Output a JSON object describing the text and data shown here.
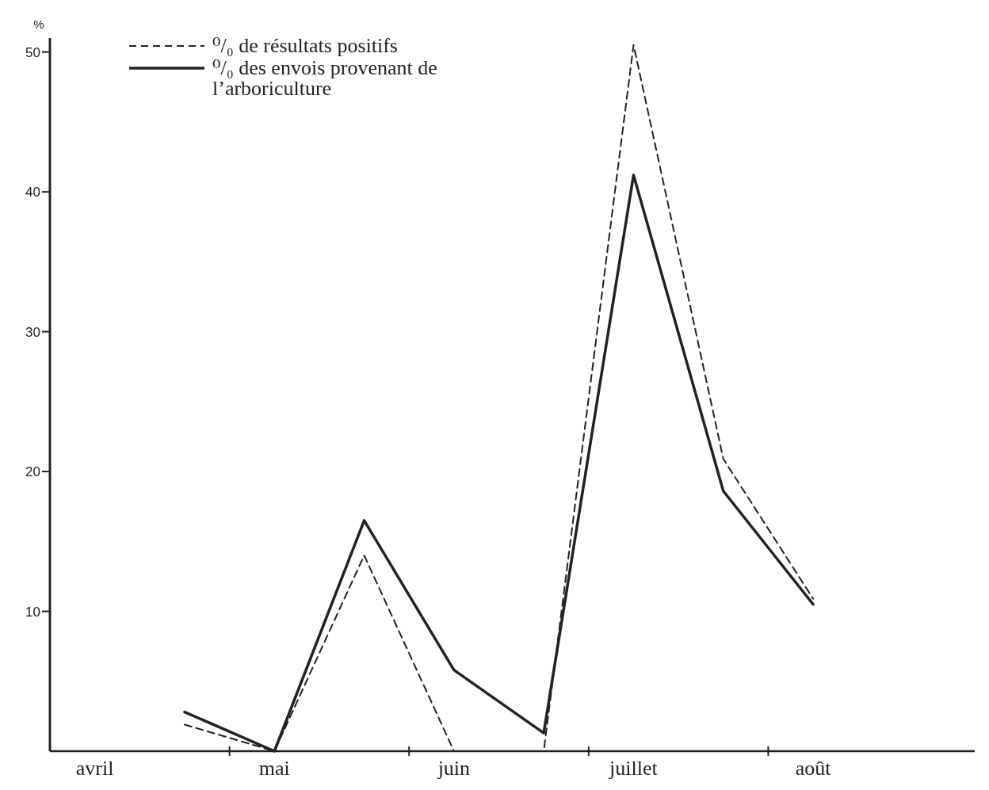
{
  "chart_data": {
    "type": "line",
    "ylabel": "%",
    "categories": [
      "avril",
      null,
      "mai",
      null,
      "juin",
      null,
      "juillet",
      null,
      "août",
      null
    ],
    "ylim": [
      0,
      51
    ],
    "yticks": [
      10,
      20,
      30,
      40,
      50
    ],
    "grid": false,
    "legend": "top left",
    "marker": "none",
    "series": [
      {
        "name": "⁰/₀ de résultats positifs",
        "color": "#222222",
        "line_style": "dashed",
        "values": [
          null,
          1.9,
          0,
          14,
          0,
          0,
          50.5,
          20.9,
          10.9,
          null
        ]
      },
      {
        "name": "⁰/₀ des envois provenant de l’arboriculture",
        "color": "#222222",
        "line_style": "solid",
        "values": [
          null,
          2.8,
          0,
          16.5,
          5.8,
          1.3,
          41.2,
          18.6,
          10.5,
          null
        ]
      }
    ]
  }
}
